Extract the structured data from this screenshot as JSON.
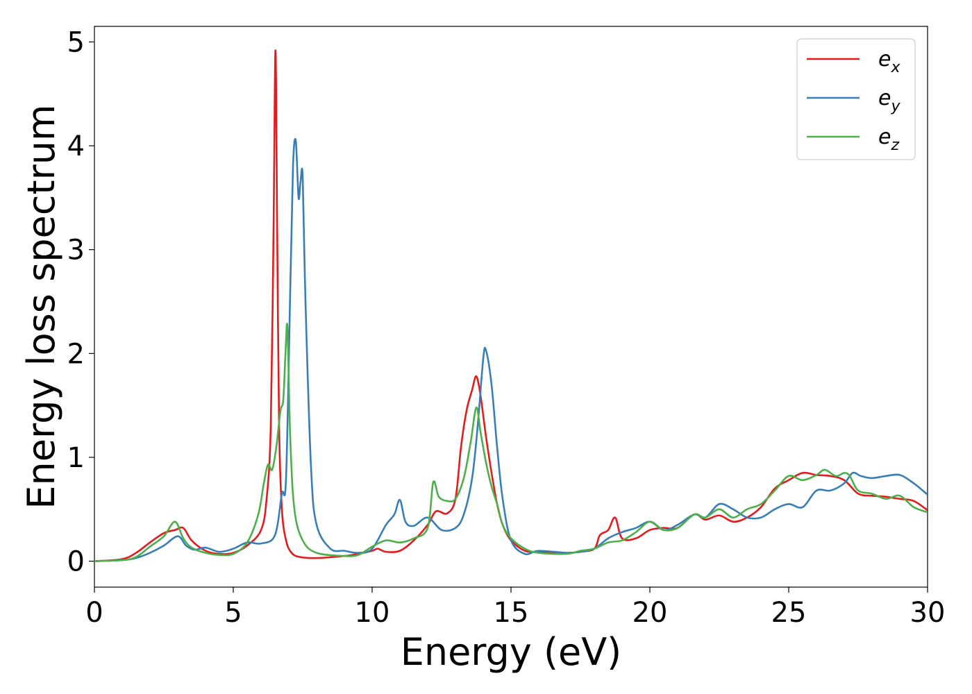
{
  "chart_data": {
    "type": "line",
    "title": "",
    "xlabel": "Energy (eV)",
    "ylabel": "Energy loss spectrum",
    "xlim": [
      0,
      30
    ],
    "ylim": [
      -0.25,
      5.15
    ],
    "xticks": [
      0,
      5,
      10,
      15,
      20,
      25,
      30
    ],
    "yticks": [
      0,
      1,
      2,
      3,
      4,
      5
    ],
    "grid": false,
    "legend_position": "top-right",
    "series": [
      {
        "name": "e",
        "subscript": "x",
        "color": "#e41a1c",
        "x": [
          0,
          1,
          1.5,
          2,
          2.5,
          2.9,
          3.2,
          3.5,
          4,
          4.5,
          5,
          5.5,
          6,
          6.2,
          6.35,
          6.45,
          6.52,
          6.58,
          6.65,
          6.75,
          6.9,
          7.1,
          7.4,
          8,
          9,
          9.5,
          10,
          10.2,
          10.5,
          11,
          11.5,
          12,
          12.3,
          12.7,
          13,
          13.2,
          13.4,
          13.6,
          13.75,
          13.9,
          14.1,
          14.3,
          14.5,
          14.7,
          15,
          15.5,
          16,
          17,
          17.5,
          18,
          18.2,
          18.5,
          18.75,
          19,
          19.5,
          20,
          20.5,
          21,
          21.6,
          22,
          22.5,
          23,
          23.5,
          24,
          24.5,
          25,
          25.5,
          26,
          26.5,
          27,
          27.5,
          28,
          28.5,
          29,
          29.5,
          30
        ],
        "y": [
          0,
          0.02,
          0.08,
          0.18,
          0.27,
          0.3,
          0.32,
          0.2,
          0.1,
          0.07,
          0.08,
          0.15,
          0.3,
          0.6,
          1.3,
          3.2,
          4.92,
          3.2,
          1.3,
          0.5,
          0.2,
          0.08,
          0.04,
          0.03,
          0.05,
          0.07,
          0.1,
          0.12,
          0.09,
          0.1,
          0.2,
          0.35,
          0.48,
          0.46,
          0.6,
          1.1,
          1.45,
          1.65,
          1.78,
          1.6,
          1.2,
          0.85,
          0.55,
          0.35,
          0.2,
          0.1,
          0.09,
          0.08,
          0.09,
          0.12,
          0.25,
          0.3,
          0.42,
          0.22,
          0.22,
          0.3,
          0.32,
          0.32,
          0.45,
          0.4,
          0.44,
          0.38,
          0.42,
          0.52,
          0.7,
          0.78,
          0.85,
          0.83,
          0.82,
          0.78,
          0.65,
          0.63,
          0.62,
          0.6,
          0.58,
          0.49
        ]
      },
      {
        "name": "e",
        "subscript": "y",
        "color": "#377eb8",
        "x": [
          0,
          1,
          1.5,
          2,
          2.5,
          3,
          3.3,
          3.6,
          4,
          4.5,
          5,
          5.5,
          6,
          6.5,
          6.75,
          6.9,
          7.05,
          7.15,
          7.25,
          7.35,
          7.42,
          7.5,
          7.6,
          7.8,
          8,
          8.5,
          9,
          9.5,
          10,
          10.5,
          10.8,
          11,
          11.2,
          11.5,
          12,
          12.5,
          13,
          13.3,
          13.6,
          13.8,
          14,
          14.1,
          14.3,
          14.5,
          14.7,
          15,
          15.5,
          16,
          17,
          17.5,
          18,
          18.5,
          19,
          19.5,
          20,
          20.5,
          21,
          21.6,
          22,
          22.5,
          23,
          23.5,
          24,
          24.5,
          25,
          25.5,
          26,
          26.5,
          27,
          27.3,
          27.6,
          28,
          28.5,
          29,
          29.5,
          30
        ],
        "y": [
          0,
          0.01,
          0.03,
          0.08,
          0.15,
          0.24,
          0.15,
          0.11,
          0.13,
          0.09,
          0.12,
          0.18,
          0.17,
          0.25,
          0.65,
          0.8,
          2.6,
          3.8,
          4.05,
          3.5,
          3.65,
          3.7,
          2.5,
          0.9,
          0.35,
          0.12,
          0.1,
          0.08,
          0.12,
          0.35,
          0.45,
          0.59,
          0.38,
          0.34,
          0.42,
          0.3,
          0.32,
          0.45,
          0.8,
          1.3,
          1.95,
          2.03,
          1.7,
          1.1,
          0.6,
          0.2,
          0.07,
          0.1,
          0.08,
          0.09,
          0.12,
          0.22,
          0.28,
          0.32,
          0.38,
          0.3,
          0.35,
          0.45,
          0.42,
          0.55,
          0.5,
          0.42,
          0.42,
          0.5,
          0.55,
          0.52,
          0.68,
          0.68,
          0.75,
          0.85,
          0.82,
          0.8,
          0.82,
          0.83,
          0.75,
          0.64
        ]
      },
      {
        "name": "e",
        "subscript": "z",
        "color": "#4daf4a",
        "x": [
          0,
          1,
          1.5,
          2,
          2.5,
          2.9,
          3.2,
          3.5,
          4,
          4.5,
          5,
          5.5,
          5.9,
          6.1,
          6.25,
          6.4,
          6.55,
          6.7,
          6.8,
          6.88,
          6.95,
          7.05,
          7.2,
          7.5,
          8,
          9,
          9.5,
          10,
          10.5,
          11,
          11.5,
          12,
          12.2,
          12.4,
          12.7,
          13,
          13.3,
          13.55,
          13.75,
          13.9,
          14.1,
          14.3,
          14.5,
          14.7,
          15,
          15.5,
          16,
          17,
          17.5,
          18,
          18.5,
          19,
          19.5,
          20,
          20.5,
          21,
          21.6,
          22,
          22.5,
          23,
          23.5,
          24,
          24.5,
          25,
          25.5,
          26,
          26.3,
          26.7,
          27,
          27.2,
          27.5,
          28,
          28.5,
          29,
          29.5,
          30
        ],
        "y": [
          0,
          0.01,
          0.04,
          0.14,
          0.24,
          0.38,
          0.22,
          0.13,
          0.08,
          0.06,
          0.07,
          0.18,
          0.45,
          0.75,
          0.93,
          0.88,
          1.1,
          1.45,
          1.55,
          2.0,
          2.25,
          1.2,
          0.5,
          0.2,
          0.08,
          0.05,
          0.06,
          0.14,
          0.2,
          0.18,
          0.22,
          0.32,
          0.76,
          0.62,
          0.58,
          0.6,
          0.8,
          1.15,
          1.48,
          1.25,
          0.95,
          0.72,
          0.55,
          0.35,
          0.22,
          0.12,
          0.08,
          0.07,
          0.1,
          0.12,
          0.18,
          0.2,
          0.28,
          0.38,
          0.3,
          0.32,
          0.45,
          0.42,
          0.5,
          0.42,
          0.5,
          0.55,
          0.68,
          0.82,
          0.78,
          0.83,
          0.88,
          0.82,
          0.85,
          0.82,
          0.68,
          0.65,
          0.6,
          0.63,
          0.52,
          0.47
        ]
      }
    ]
  }
}
